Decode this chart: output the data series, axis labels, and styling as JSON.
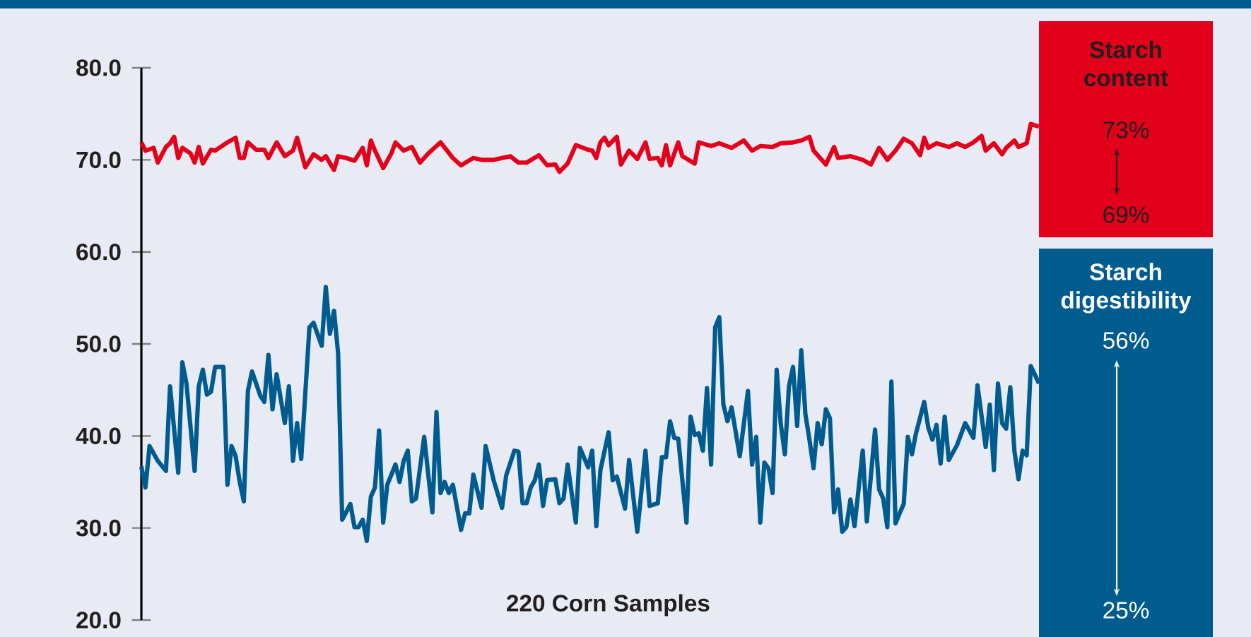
{
  "chart_data": {
    "type": "line",
    "xlabel": "220 Corn Samples",
    "ylim": [
      20,
      80
    ],
    "yticks": [
      {
        "value": 20,
        "label": "20.0"
      },
      {
        "value": 30,
        "label": "30.0"
      },
      {
        "value": 40,
        "label": "40.0"
      },
      {
        "value": 50,
        "label": "50.0"
      },
      {
        "value": 60,
        "label": "60.0"
      },
      {
        "value": 70,
        "label": "70.0"
      },
      {
        "value": 80,
        "label": "80.0"
      }
    ],
    "tick_labels": "y",
    "categories": [
      null,
      null,
      null,
      null,
      null,
      null,
      null,
      null,
      null,
      null,
      null,
      null,
      null,
      null,
      null,
      null,
      null,
      null,
      null,
      null,
      null,
      null,
      null,
      null,
      null,
      null,
      null,
      null,
      null,
      null,
      null,
      null,
      null,
      null,
      null,
      null,
      null,
      null,
      null,
      null,
      null,
      null,
      null,
      null,
      null,
      null,
      null,
      null,
      null,
      null,
      null,
      null,
      null,
      null,
      null,
      null,
      null,
      null,
      null,
      null,
      null,
      null,
      null,
      null,
      null,
      null,
      null,
      null,
      null,
      null,
      null,
      null,
      null,
      null,
      null,
      null,
      null,
      null,
      null,
      null,
      null,
      null,
      null,
      null,
      null,
      null,
      null,
      null,
      null,
      null,
      null,
      null,
      null,
      null,
      null,
      null,
      null,
      null,
      null,
      null,
      null,
      null,
      null,
      null,
      null,
      null,
      null,
      null,
      null,
      null,
      null,
      null,
      null,
      null,
      null,
      null,
      null,
      null,
      null,
      null,
      null,
      null,
      null,
      null,
      null,
      null,
      null,
      null,
      null,
      null,
      null,
      null,
      null,
      null,
      null,
      null,
      null,
      null,
      null,
      null,
      null,
      null,
      null,
      null,
      null,
      null,
      null,
      null,
      null,
      null,
      null,
      null,
      null,
      null,
      null,
      null,
      null,
      null,
      null,
      null,
      null,
      null,
      null,
      null,
      null,
      null,
      null,
      null,
      null,
      null,
      null,
      null,
      null,
      null,
      null,
      null,
      null,
      null,
      null,
      null,
      null,
      null,
      null,
      null,
      null,
      null,
      null,
      null,
      null,
      null,
      null,
      null,
      null,
      null,
      null,
      null,
      null,
      null,
      null,
      null,
      null,
      null,
      null,
      null,
      null,
      null,
      null,
      null,
      null,
      null,
      null,
      null,
      null,
      null,
      null,
      null,
      null,
      null,
      null,
      null
    ],
    "series": [
      {
        "name": "Starch content",
        "color": "#e2001a",
        "values": [
          71.9,
          71.0,
          null,
          71.3,
          69.7,
          null,
          71.4,
          71.8,
          72.5,
          70.2,
          71.3,
          null,
          70.7,
          69.7,
          71.4,
          69.6,
          null,
          71.1,
          71.0,
          null,
          null,
          71.9,
          null,
          72.4,
          70.2,
          70.2,
          71.9,
          null,
          71.1,
          null,
          71.1,
          70.2,
          null,
          71.9,
          null,
          70.4,
          null,
          71.0,
          72.4,
          null,
          69.2,
          null,
          70.6,
          null,
          70.0,
          70.4,
          null,
          68.9,
          70.4,
          null,
          70.2,
          null,
          69.9,
          null,
          71.3,
          69.4,
          72.1,
          71.0,
          null,
          69.1,
          null,
          70.7,
          71.9,
          null,
          71.0,
          null,
          71.4,
          null,
          69.7,
          null,
          70.7,
          null,
          null,
          71.9,
          null,
          null,
          70.2,
          null,
          69.4,
          null,
          null,
          70.2,
          null,
          70.0,
          null,
          null,
          70.0,
          null,
          70.2,
          null,
          70.4,
          null,
          69.7,
          null,
          69.7,
          null,
          null,
          70.5,
          null,
          69.4,
          null,
          69.5,
          68.7,
          null,
          69.6,
          null,
          71.6,
          null,
          null,
          71.1,
          71.0,
          70.2,
          71.9,
          72.4,
          71.6,
          null,
          72.5,
          69.5,
          null,
          71.0,
          null,
          70.1,
          null,
          71.9,
          70.1,
          null,
          70.2,
          69.4,
          71.6,
          69.4,
          null,
          71.9,
          70.4,
          null,
          null,
          69.6,
          71.9,
          null,
          null,
          71.5,
          null,
          71.8,
          null,
          null,
          71.3,
          null,
          null,
          72.1,
          null,
          71.0,
          null,
          71.5,
          null,
          null,
          71.4,
          null,
          71.8,
          null,
          null,
          71.9,
          null,
          72.1,
          null,
          72.5,
          71.0,
          null,
          null,
          69.5,
          null,
          71.4,
          70.2,
          null,
          null,
          70.4,
          null,
          null,
          70.0,
          null,
          69.5,
          null,
          71.3,
          null,
          70.0,
          null,
          71.0,
          null,
          72.3,
          null,
          71.8,
          null,
          70.5,
          72.4,
          71.3,
          null,
          71.8,
          null,
          null,
          71.4,
          null,
          71.8,
          null,
          71.4,
          null,
          71.9,
          null,
          72.6,
          71.0,
          null,
          71.8,
          null,
          70.6,
          71.3,
          null,
          72.1,
          71.4,
          null,
          71.8,
          73.9,
          null,
          73.6
        ]
      },
      {
        "name": "Starch digestibility",
        "color": "#005b8f",
        "values": [
          36.7,
          34.4,
          38.9,
          null,
          37.3,
          null,
          36.2,
          45.4,
          null,
          36.0,
          48.0,
          45.7,
          null,
          36.2,
          45.4,
          47.2,
          44.5,
          44.8,
          47.5,
          null,
          47.5,
          34.7,
          38.9,
          37.8,
          35.0,
          32.9,
          44.9,
          47.0,
          null,
          44.4,
          43.7,
          48.8,
          42.9,
          46.7,
          null,
          41.4,
          45.4,
          37.3,
          41.4,
          37.5,
          null,
          51.8,
          52.3,
          null,
          49.8,
          56.2,
          51.1,
          53.6,
          49.0,
          30.9,
          null,
          32.6,
          30.1,
          30.1,
          30.9,
          28.6,
          33.4,
          34.4,
          40.6,
          30.6,
          34.7,
          null,
          36.9,
          35.0,
          37.3,
          38.4,
          32.9,
          33.2,
          null,
          39.9,
          null,
          31.7,
          42.6,
          33.8,
          35.0,
          33.8,
          34.7,
          null,
          29.8,
          31.6,
          31.6,
          35.8,
          null,
          32.2,
          38.9,
          null,
          35.1,
          null,
          32.2,
          35.7,
          null,
          38.4,
          38.3,
          32.7,
          32.7,
          34.4,
          35.2,
          36.9,
          32.4,
          35.2,
          null,
          35.3,
          32.7,
          33.2,
          36.9,
          null,
          30.6,
          38.7,
          null,
          36.6,
          38.4,
          30.2,
          36.3,
          null,
          40.4,
          35.2,
          35.6,
          null,
          32.1,
          37.4,
          null,
          29.6,
          null,
          38.4,
          32.4,
          null,
          32.7,
          37.7,
          37.7,
          41.6,
          39.8,
          39.7,
          null,
          30.6,
          42.1,
          40.1,
          40.3,
          38.4,
          45.2,
          36.9,
          51.8,
          52.9,
          43.4,
          41.6,
          43.1,
          null,
          37.8,
          null,
          44.9,
          36.9,
          39.9,
          30.6,
          37.1,
          36.5,
          33.8,
          47.2,
          41.3,
          38.0,
          45.4,
          47.5,
          41.1,
          49.3,
          42.4,
          39.6,
          36.5,
          41.4,
          39.1,
          42.9,
          41.9,
          31.7,
          34.2,
          29.6,
          30.1,
          33.1,
          30.2,
          null,
          38.4,
          30.7,
          null,
          40.7,
          34.2,
          33.2,
          30.1,
          45.9,
          30.5,
          31.6,
          32.6,
          39.9,
          38.0,
          40.3,
          null,
          43.7,
          40.9,
          39.6,
          41.2,
          37.0,
          42.1,
          37.4,
          null,
          39.0,
          null,
          41.4,
          null,
          39.8,
          45.5,
          null,
          38.8,
          43.4,
          36.3,
          45.7,
          41.4,
          40.8,
          45.3,
          38.4,
          35.3,
          38.4,
          37.9,
          47.6,
          null,
          45.7
        ]
      }
    ],
    "annotations": [
      "73%",
      "69%",
      "56%",
      "25%"
    ]
  }
}
